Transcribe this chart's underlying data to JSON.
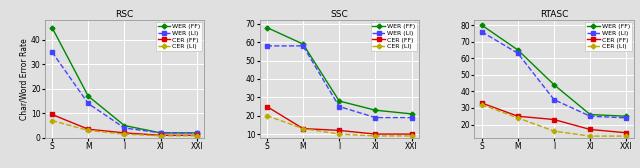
{
  "x_labels": [
    "S",
    "M",
    "I",
    "XI",
    "XXI"
  ],
  "panels": [
    {
      "title": "RSC",
      "ylim": [
        0,
        48
      ],
      "yticks": [
        0,
        10,
        20,
        30,
        40
      ],
      "series": {
        "WER (FF)": [
          45,
          17,
          5.0,
          2.0,
          2.0
        ],
        "WER (LI)": [
          35,
          14,
          4.0,
          2.0,
          2.0
        ],
        "CER (FF)": [
          9.5,
          3.5,
          2.0,
          1.0,
          1.0
        ],
        "CER (LI)": [
          7.0,
          3.0,
          1.5,
          0.8,
          0.8
        ]
      }
    },
    {
      "title": "SSC",
      "ylim": [
        8,
        72
      ],
      "yticks": [
        10,
        20,
        30,
        40,
        50,
        60,
        70
      ],
      "series": {
        "WER (FF)": [
          68,
          59,
          28,
          23,
          21
        ],
        "WER (LI)": [
          58,
          58,
          25,
          19,
          19
        ],
        "CER (FF)": [
          25,
          13,
          12,
          10,
          10
        ],
        "CER (LI)": [
          20,
          13,
          10,
          9,
          9
        ]
      }
    },
    {
      "title": "RTASC",
      "ylim": [
        12,
        83
      ],
      "yticks": [
        20,
        30,
        40,
        50,
        60,
        70,
        80
      ],
      "series": {
        "WER (FF)": [
          80,
          65,
          44,
          26,
          25
        ],
        "WER (LI)": [
          76,
          63,
          35,
          25,
          24
        ],
        "CER (FF)": [
          33,
          25,
          23,
          17,
          15
        ],
        "CER (LI)": [
          32,
          24,
          16,
          13,
          13
        ]
      }
    }
  ],
  "series_styles": {
    "WER (FF)": {
      "color": "#008800",
      "linestyle": "-",
      "marker": "D",
      "markersize": 2.5,
      "linewidth": 1.0
    },
    "WER (LI)": {
      "color": "#4444ff",
      "linestyle": "--",
      "marker": "s",
      "markersize": 2.5,
      "linewidth": 1.0
    },
    "CER (FF)": {
      "color": "#dd0000",
      "linestyle": "-",
      "marker": "s",
      "markersize": 2.5,
      "linewidth": 1.0
    },
    "CER (LI)": {
      "color": "#bbaa00",
      "linestyle": "--",
      "marker": "D",
      "markersize": 2.5,
      "linewidth": 1.0
    }
  },
  "ylabel": "Char/Word Error Rate",
  "background_color": "#e0e0e0",
  "grid_color": "white"
}
